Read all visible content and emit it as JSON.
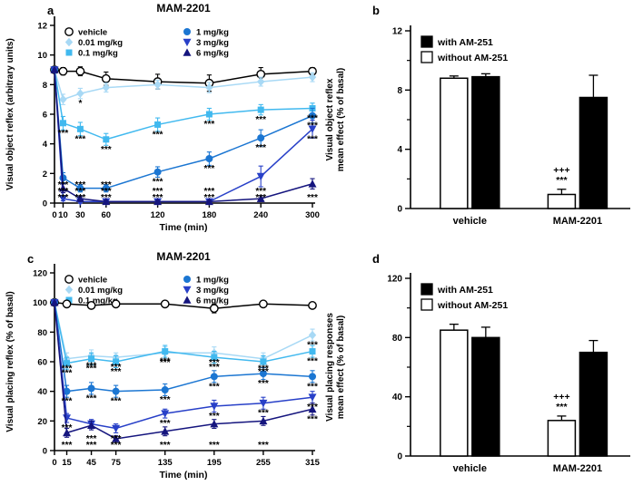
{
  "panels": {
    "a": {
      "label": "a"
    },
    "b": {
      "label": "b"
    },
    "c": {
      "label": "c"
    },
    "d": {
      "label": "d"
    }
  },
  "chart_data": [
    {
      "panel": "a",
      "type": "line",
      "title": "MAM-2201",
      "xlabel": "Time (min)",
      "ylabel": "Visual object reflex (arbitrary units)",
      "x": [
        0,
        10,
        30,
        60,
        120,
        180,
        240,
        300
      ],
      "xticklabels": [
        "0",
        "10",
        "30",
        "60",
        "120",
        "180",
        "240",
        "300"
      ],
      "ylim": [
        0,
        12
      ],
      "yticks": [
        0,
        2,
        4,
        6,
        8,
        10,
        12
      ],
      "legend_position": "top-inside",
      "grid": false,
      "series": [
        {
          "name": "vehicle",
          "marker": "circle-open",
          "color": "#000000",
          "values": [
            9,
            8.9,
            8.9,
            8.4,
            8.2,
            8.1,
            8.7,
            8.9
          ],
          "err": [
            0.2,
            0.25,
            0.3,
            0.45,
            0.5,
            0.55,
            0.45,
            0.25
          ],
          "sig": [
            "",
            "",
            "",
            "",
            "",
            "",
            "",
            ""
          ]
        },
        {
          "name": "0.01 mg/kg",
          "marker": "diamond",
          "color": "#a8d9f5",
          "values": [
            9,
            7.0,
            7.4,
            7.8,
            8.0,
            7.8,
            8.2,
            8.5
          ],
          "err": [
            0,
            0.35,
            0.35,
            0.3,
            0.3,
            0.35,
            0.3,
            0.3
          ],
          "sig": [
            "",
            "",
            "*",
            "",
            "",
            "",
            "",
            ""
          ]
        },
        {
          "name": "0.1 mg/kg",
          "marker": "square",
          "color": "#41b9ef",
          "values": [
            9,
            5.4,
            5.0,
            4.3,
            5.3,
            6.0,
            6.3,
            6.4
          ],
          "err": [
            0,
            0.45,
            0.45,
            0.4,
            0.45,
            0.4,
            0.35,
            0.35
          ],
          "sig": [
            "",
            "***",
            "***",
            "***",
            "***",
            "***",
            "***",
            "***"
          ]
        },
        {
          "name": "1 mg/kg",
          "marker": "circle",
          "color": "#1b76d2",
          "values": [
            9,
            1.7,
            1.0,
            1.0,
            2.1,
            3.0,
            4.4,
            5.9
          ],
          "err": [
            0,
            0.35,
            0.25,
            0.25,
            0.35,
            0.45,
            0.55,
            0.5
          ],
          "sig": [
            "",
            "***",
            "***",
            "***",
            "***",
            "***",
            "***",
            "***"
          ]
        },
        {
          "name": "3 mg/kg",
          "marker": "triangle-down",
          "color": "#2840c8",
          "values": [
            9,
            0.3,
            0.1,
            0.1,
            0.1,
            0.1,
            1.8,
            5.0
          ],
          "err": [
            0,
            0.15,
            0.1,
            0.1,
            0.1,
            0.1,
            0.7,
            0.6
          ],
          "sig": [
            "",
            "***",
            "***",
            "***",
            "***",
            "***",
            "***",
            "***"
          ]
        },
        {
          "name": "6 mg/kg",
          "marker": "triangle-up",
          "color": "#15157e",
          "values": [
            9,
            1.0,
            0.3,
            0.1,
            0.1,
            0.1,
            0.3,
            1.3
          ],
          "err": [
            0,
            0.3,
            0.15,
            0.1,
            0.1,
            0.1,
            0.2,
            0.35
          ],
          "sig": [
            "",
            "***",
            "***",
            "***",
            "***",
            "***",
            "***",
            "***"
          ]
        }
      ]
    },
    {
      "panel": "b",
      "type": "bar",
      "ylabel_lines": [
        "Visual object reflex",
        "mean effect (% of basal)"
      ],
      "ylim": [
        0,
        12
      ],
      "yticks": [
        0,
        4,
        8,
        12
      ],
      "yticks_minor": [
        2,
        6,
        10
      ],
      "groups": [
        "vehicle",
        "MAM-2201"
      ],
      "legend": [
        {
          "label": "with AM-251",
          "fill": "#000000"
        },
        {
          "label": "without AM-251",
          "fill": "#ffffff"
        }
      ],
      "series": [
        {
          "name": "without AM-251",
          "fill": "#ffffff",
          "values": [
            8.8,
            0.95
          ],
          "err": [
            0.15,
            0.35
          ],
          "sig": [
            [],
            [
              "+++",
              "***"
            ]
          ]
        },
        {
          "name": "with AM-251",
          "fill": "#000000",
          "values": [
            8.9,
            7.5
          ],
          "err": [
            0.2,
            1.5
          ],
          "sig": [
            [],
            []
          ]
        }
      ]
    },
    {
      "panel": "c",
      "type": "line",
      "title": "MAM-2201",
      "xlabel": "Time (min)",
      "ylabel": "Visual placing reflex (% of basal)",
      "x": [
        0,
        15,
        45,
        75,
        135,
        195,
        255,
        315
      ],
      "xticklabels": [
        "0",
        "15",
        "45",
        "75",
        "135",
        "195",
        "255",
        "315"
      ],
      "ylim": [
        0,
        120
      ],
      "yticks": [
        0,
        20,
        40,
        60,
        80,
        100,
        120
      ],
      "legend_position": "top-inside",
      "grid": false,
      "series": [
        {
          "name": "vehicle",
          "marker": "circle-open",
          "color": "#000000",
          "values": [
            100,
            99,
            98,
            99,
            99,
            96,
            99,
            98
          ],
          "err": [
            2,
            2,
            2,
            2,
            2,
            3,
            2,
            2
          ],
          "sig": [
            "",
            "",
            "",
            "",
            "",
            "",
            "",
            ""
          ]
        },
        {
          "name": "0.01 mg/kg",
          "marker": "diamond",
          "color": "#a8d9f5",
          "values": [
            100,
            62,
            64,
            63,
            66,
            66,
            62,
            78
          ],
          "err": [
            0,
            4,
            4,
            3,
            4,
            4,
            4,
            4
          ],
          "sig": [
            "",
            "***",
            "***",
            "***",
            "***",
            "***",
            "***",
            "***"
          ]
        },
        {
          "name": "0.1 mg/kg",
          "marker": "square",
          "color": "#41b9ef",
          "values": [
            100,
            59,
            62,
            60,
            67,
            63,
            60,
            67
          ],
          "err": [
            0,
            4,
            4,
            4,
            4,
            4,
            4,
            4
          ],
          "sig": [
            "",
            "***",
            "***",
            "***",
            "***",
            "***",
            "***",
            "***"
          ]
        },
        {
          "name": "1 mg/kg",
          "marker": "circle",
          "color": "#1b76d2",
          "values": [
            100,
            40,
            42,
            40,
            41,
            50,
            52,
            50
          ],
          "err": [
            0,
            4,
            4,
            4,
            4,
            4,
            4,
            4
          ],
          "sig": [
            "",
            "***",
            "***",
            "***",
            "***",
            "***",
            "***",
            "***"
          ]
        },
        {
          "name": "3 mg/kg",
          "marker": "triangle-down",
          "color": "#2840c8",
          "values": [
            100,
            22,
            18,
            15,
            25,
            30,
            32,
            36
          ],
          "err": [
            0,
            3,
            3,
            3,
            3,
            4,
            4,
            4
          ],
          "sig": [
            "",
            "***",
            "***",
            "***",
            "***",
            "***",
            "***",
            "***"
          ]
        },
        {
          "name": "6 mg/kg",
          "marker": "triangle-up",
          "color": "#15157e",
          "values": [
            100,
            12,
            17,
            8,
            13,
            18,
            20,
            28
          ],
          "err": [
            0,
            3,
            3,
            2,
            3,
            3,
            3,
            4
          ],
          "sig": [
            "",
            "***",
            "***",
            "***",
            "***",
            "***",
            "***",
            "***"
          ]
        }
      ]
    },
    {
      "panel": "d",
      "type": "bar",
      "ylabel_lines": [
        "Visual placing responses",
        "mean effect (% of basal)"
      ],
      "ylim": [
        0,
        120
      ],
      "yticks": [
        0,
        40,
        80,
        120
      ],
      "yticks_minor": [
        20,
        60,
        100
      ],
      "groups": [
        "vehicle",
        "MAM-2201"
      ],
      "legend": [
        {
          "label": "with AM-251",
          "fill": "#000000"
        },
        {
          "label": "without AM-251",
          "fill": "#ffffff"
        }
      ],
      "series": [
        {
          "name": "without AM-251",
          "fill": "#ffffff",
          "values": [
            85,
            24
          ],
          "err": [
            4,
            3
          ],
          "sig": [
            [],
            [
              "+++",
              "***"
            ]
          ]
        },
        {
          "name": "with AM-251",
          "fill": "#000000",
          "values": [
            80,
            70
          ],
          "err": [
            7,
            8
          ],
          "sig": [
            [],
            []
          ]
        }
      ]
    }
  ]
}
